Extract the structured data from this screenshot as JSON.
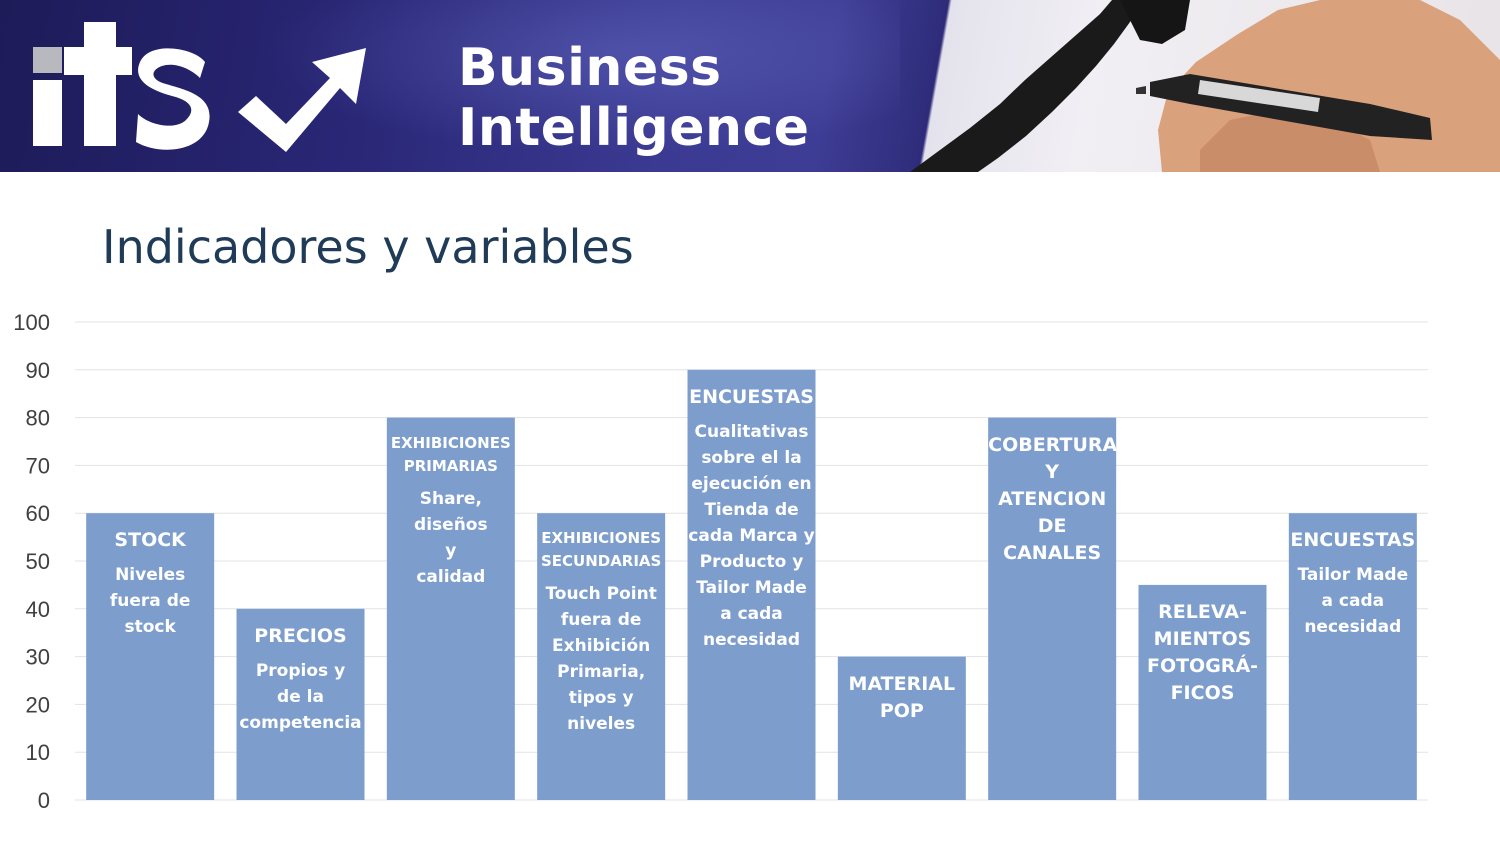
{
  "banner": {
    "logo_text": "its",
    "title_line1": "Business",
    "title_line2": "Intelligence"
  },
  "page_title": "Indicadores y variables",
  "chart_data": {
    "type": "bar",
    "title": "",
    "xlabel": "",
    "ylabel": "",
    "ylim": [
      0,
      100
    ],
    "yticks": [
      0,
      10,
      20,
      30,
      40,
      50,
      60,
      70,
      80,
      90,
      100
    ],
    "grid": true,
    "bar_color": "#7d9ecd",
    "categories": [
      "STOCK",
      "PRECIOS",
      "EXHIBICIONES PRIMARIAS",
      "EXHIBICIONES SECUNDARIAS",
      "ENCUESTAS",
      "MATERIAL POP",
      "COBERTURA Y ATENCION DE CANALES",
      "RELEVA-MIENTOS FOTOGRÁ-FICOS",
      "ENCUESTAS"
    ],
    "values": [
      60,
      40,
      80,
      60,
      90,
      30,
      80,
      45,
      60
    ],
    "bar_labels": [
      {
        "head": [
          "STOCK"
        ],
        "small": false,
        "body": [
          "Niveles",
          "fuera de",
          "stock"
        ]
      },
      {
        "head": [
          "PRECIOS"
        ],
        "small": false,
        "body": [
          "Propios y",
          "de la",
          "competencia"
        ]
      },
      {
        "head": [
          "EXHIBICIONES",
          "PRIMARIAS"
        ],
        "small": true,
        "body": [
          "Share,",
          "diseños",
          "y",
          "calidad"
        ]
      },
      {
        "head": [
          "EXHIBICIONES",
          "SECUNDARIAS"
        ],
        "small": true,
        "body": [
          "Touch Point",
          "fuera de",
          "Exhibición",
          "Primaria,",
          "tipos y",
          "niveles"
        ]
      },
      {
        "head": [
          "ENCUESTAS"
        ],
        "small": false,
        "body": [
          "Cualitativas",
          "sobre el la",
          "ejecución en",
          "Tienda de",
          "cada Marca y",
          "Producto y",
          "Tailor Made",
          "a cada",
          "necesidad"
        ]
      },
      {
        "head": [
          "MATERIAL",
          "POP"
        ],
        "small": false,
        "body": []
      },
      {
        "head": [
          "COBERTURA",
          "Y",
          "ATENCION",
          "DE",
          "CANALES"
        ],
        "small": false,
        "body": []
      },
      {
        "head": [
          "RELEVA-",
          "MIENTOS",
          "FOTOGRÁ-",
          "FICOS"
        ],
        "small": false,
        "body": []
      },
      {
        "head": [
          "ENCUESTAS"
        ],
        "small": false,
        "body": [
          "Tailor Made",
          "a cada",
          "necesidad"
        ]
      }
    ]
  }
}
